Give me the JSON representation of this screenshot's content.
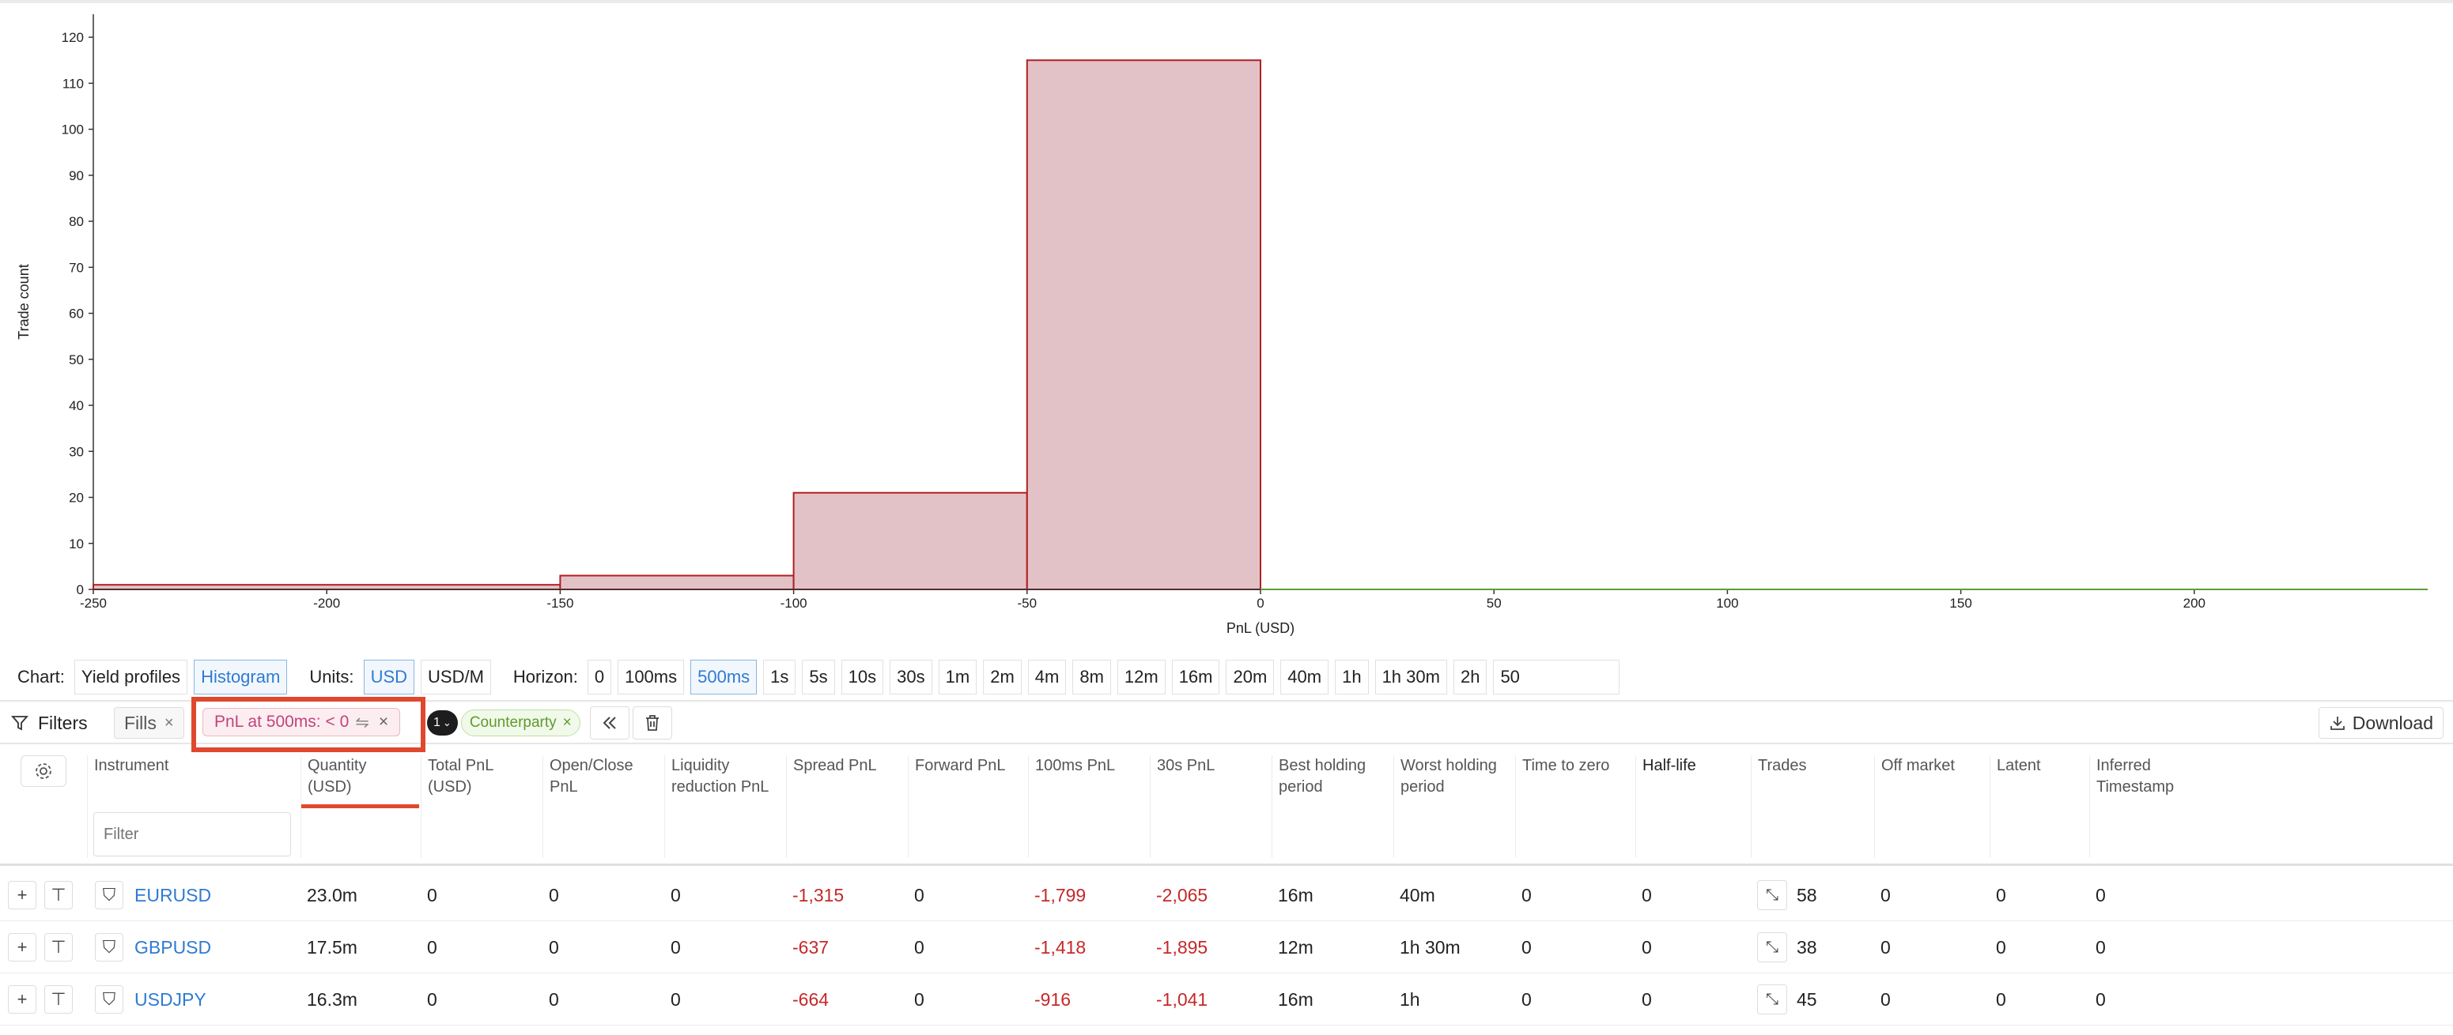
{
  "chart_data": {
    "type": "bar",
    "xlabel": "PnL (USD)",
    "ylabel": "Trade count",
    "xlim": [
      -250,
      250
    ],
    "ylim": [
      0,
      125
    ],
    "x_ticks": [
      -250,
      -200,
      -150,
      -100,
      -50,
      0,
      50,
      100,
      150,
      200
    ],
    "y_ticks": [
      0,
      10,
      20,
      30,
      40,
      50,
      60,
      70,
      80,
      90,
      100,
      110,
      120
    ],
    "bins": [
      {
        "from": -250,
        "to": -150,
        "count": 1
      },
      {
        "from": -150,
        "to": -100,
        "count": 3
      },
      {
        "from": -100,
        "to": -50,
        "count": 21
      },
      {
        "from": -50,
        "to": 0,
        "count": 115
      }
    ],
    "bar_fill": "#e3c2c7",
    "bar_stroke": "#b11f1f",
    "zero_line_color": "#5a9e3a"
  },
  "controls": {
    "chart_label": "Chart:",
    "chart_options": [
      "Yield profiles",
      "Histogram"
    ],
    "chart_selected": "Histogram",
    "units_label": "Units:",
    "unit_options": [
      "USD",
      "USD/M"
    ],
    "unit_selected": "USD",
    "horizon_label": "Horizon:",
    "horizon_options": [
      "0",
      "100ms",
      "500ms",
      "1s",
      "5s",
      "10s",
      "30s",
      "1m",
      "2m",
      "4m",
      "8m",
      "12m",
      "16m",
      "20m",
      "40m",
      "1h",
      "1h 30m",
      "2h"
    ],
    "horizon_selected": "500ms",
    "horizon_input_value": "50"
  },
  "filterbar": {
    "filters_label": "Filters",
    "fills_chip": "Fills",
    "pnl_chip": "PnL at 500ms: < 0",
    "counterparty_badge": "1",
    "counterparty_chip": "Counterparty",
    "download_label": "Download"
  },
  "table": {
    "filter_placeholder": "Filter",
    "columns": [
      {
        "key": "instrument",
        "label": "Instrument"
      },
      {
        "key": "quantity",
        "label": "Quantity\n(USD)"
      },
      {
        "key": "total_pnl",
        "label": "Total PnL\n(USD)"
      },
      {
        "key": "open_close",
        "label": "Open/Close\nPnL"
      },
      {
        "key": "liq_red",
        "label": "Liquidity\nreduction PnL"
      },
      {
        "key": "spread",
        "label": "Spread PnL"
      },
      {
        "key": "forward",
        "label": "Forward PnL"
      },
      {
        "key": "ms100",
        "label": "100ms PnL"
      },
      {
        "key": "s30",
        "label": "30s PnL"
      },
      {
        "key": "best",
        "label": "Best holding\nperiod"
      },
      {
        "key": "worst",
        "label": "Worst holding\nperiod"
      },
      {
        "key": "ttz",
        "label": "Time to zero"
      },
      {
        "key": "halflife",
        "label": "Half-life"
      },
      {
        "key": "trades",
        "label": "Trades"
      },
      {
        "key": "offmarket",
        "label": "Off market"
      },
      {
        "key": "latent",
        "label": "Latent"
      },
      {
        "key": "inferred",
        "label": "Inferred\nTimestamp"
      }
    ],
    "rows": [
      {
        "instrument": "EURUSD",
        "quantity": "23.0m",
        "total_pnl": "0",
        "open_close": "0",
        "liq_red": "0",
        "spread": "-1,315",
        "forward": "0",
        "ms100": "-1,799",
        "s30": "-2,065",
        "best": "16m",
        "worst": "40m",
        "ttz": "0",
        "halflife": "0",
        "trades": "58",
        "offmarket": "0",
        "latent": "0",
        "inferred": "0"
      },
      {
        "instrument": "GBPUSD",
        "quantity": "17.5m",
        "total_pnl": "0",
        "open_close": "0",
        "liq_red": "0",
        "spread": "-637",
        "forward": "0",
        "ms100": "-1,418",
        "s30": "-1,895",
        "best": "12m",
        "worst": "1h 30m",
        "ttz": "0",
        "halflife": "0",
        "trades": "38",
        "offmarket": "0",
        "latent": "0",
        "inferred": "0"
      },
      {
        "instrument": "USDJPY",
        "quantity": "16.3m",
        "total_pnl": "0",
        "open_close": "0",
        "liq_red": "0",
        "spread": "-664",
        "forward": "0",
        "ms100": "-916",
        "s30": "-1,041",
        "best": "16m",
        "worst": "1h",
        "ttz": "0",
        "halflife": "0",
        "trades": "45",
        "offmarket": "0",
        "latent": "0",
        "inferred": "0"
      }
    ]
  }
}
